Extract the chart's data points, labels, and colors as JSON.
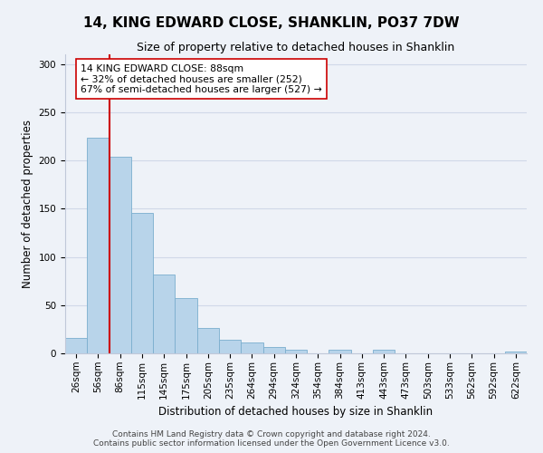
{
  "title": "14, KING EDWARD CLOSE, SHANKLIN, PO37 7DW",
  "subtitle": "Size of property relative to detached houses in Shanklin",
  "xlabel": "Distribution of detached houses by size in Shanklin",
  "ylabel": "Number of detached properties",
  "bin_labels": [
    "26sqm",
    "56sqm",
    "86sqm",
    "115sqm",
    "145sqm",
    "175sqm",
    "205sqm",
    "235sqm",
    "264sqm",
    "294sqm",
    "324sqm",
    "354sqm",
    "384sqm",
    "413sqm",
    "443sqm",
    "473sqm",
    "503sqm",
    "533sqm",
    "562sqm",
    "592sqm",
    "622sqm"
  ],
  "bar_heights": [
    16,
    224,
    204,
    146,
    82,
    57,
    26,
    14,
    11,
    7,
    4,
    0,
    4,
    0,
    4,
    0,
    0,
    0,
    0,
    0,
    2
  ],
  "bar_color": "#b8d4ea",
  "bar_edge_color": "#7aaece",
  "vline_x": 1.5,
  "vline_color": "#cc0000",
  "annotation_text": "14 KING EDWARD CLOSE: 88sqm\n← 32% of detached houses are smaller (252)\n67% of semi-detached houses are larger (527) →",
  "annotation_box_color": "#ffffff",
  "annotation_box_edge": "#cc0000",
  "ylim": [
    0,
    310
  ],
  "yticks": [
    0,
    50,
    100,
    150,
    200,
    250,
    300
  ],
  "footer_line1": "Contains HM Land Registry data © Crown copyright and database right 2024.",
  "footer_line2": "Contains public sector information licensed under the Open Government Licence v3.0.",
  "background_color": "#eef2f8",
  "grid_color": "#d0d8e8",
  "title_fontsize": 11,
  "subtitle_fontsize": 9,
  "axis_label_fontsize": 8.5,
  "tick_fontsize": 7.5,
  "annotation_fontsize": 7.8,
  "footer_fontsize": 6.5
}
